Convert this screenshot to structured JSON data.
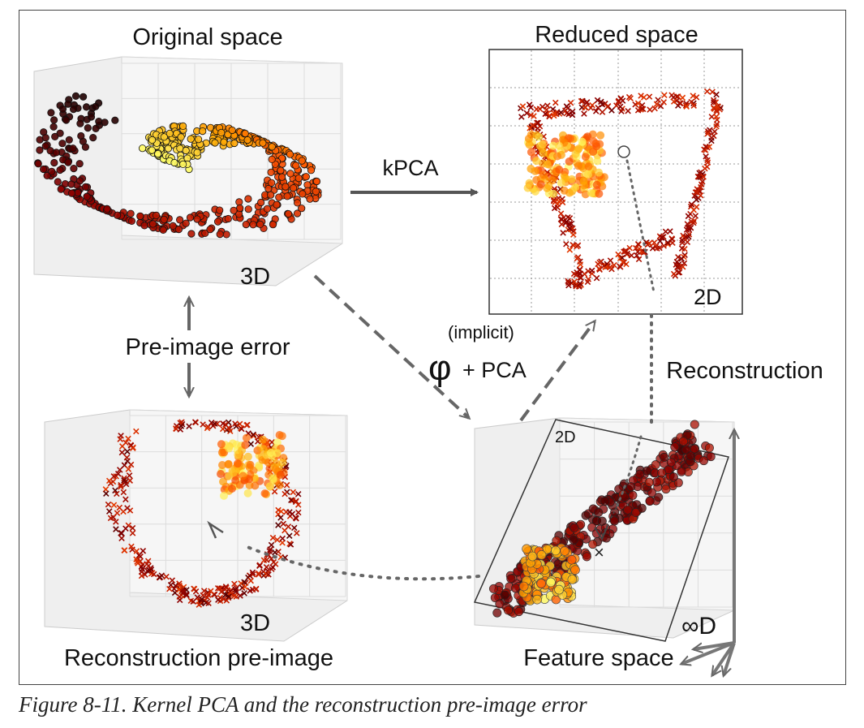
{
  "labels": {
    "original_space": "Original space",
    "reduced_space": "Reduced space",
    "kpca": "kPCA",
    "pre_image_error": "Pre-image error",
    "phi": "φ",
    "implicit": "(implicit)",
    "plus_pca": "+ PCA",
    "reconstruction": "Reconstruction",
    "reconstruction_pre_image": "Reconstruction pre-image",
    "feature_space": "Feature space",
    "dim_3d_top": "3D",
    "dim_2d_reduced": "2D",
    "dim_2d_plane": "2D",
    "dim_3d_bottom": "3D",
    "infinite_d": "∞D"
  },
  "caption": "Figure 8-11. Kernel PCA and the reconstruction pre-image error",
  "colors": {
    "arrow": "#555555",
    "frame": "#444444",
    "panel_bg": "#ececec",
    "gradient": [
      "#1a0000",
      "#8b0000",
      "#cc2200",
      "#ff5500",
      "#ffa500",
      "#ffff66"
    ]
  }
}
